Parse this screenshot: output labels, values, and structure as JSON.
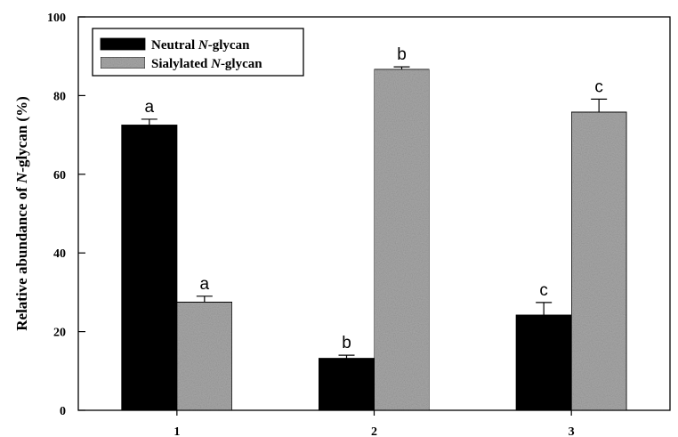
{
  "chart_data": {
    "type": "bar",
    "title": "",
    "xlabel": "",
    "ylabel_parts": [
      "Relative abundance of ",
      "N",
      "-glycan (%)"
    ],
    "categories": [
      "1",
      "2",
      "3"
    ],
    "ylim": [
      0,
      100
    ],
    "yticks": [
      0,
      20,
      40,
      60,
      80,
      100
    ],
    "grid": false,
    "legend_position": "top-left",
    "series": [
      {
        "name": "Neutral N-glycan",
        "legend_parts": [
          "Neutral ",
          "N",
          "-glycan"
        ],
        "color": "#000000",
        "values": [
          72.5,
          13.2,
          24.2
        ],
        "errors": [
          1.5,
          0.8,
          3.2
        ],
        "labels": [
          "a",
          "b",
          "c"
        ]
      },
      {
        "name": "Sialylated N-glycan",
        "legend_parts": [
          "Sialylated ",
          "N",
          "-glycan"
        ],
        "color": "#a8a8a8",
        "values": [
          27.5,
          86.7,
          75.8
        ],
        "errors": [
          1.5,
          0.6,
          3.3
        ],
        "labels": [
          "a",
          "b",
          "c"
        ]
      }
    ]
  }
}
